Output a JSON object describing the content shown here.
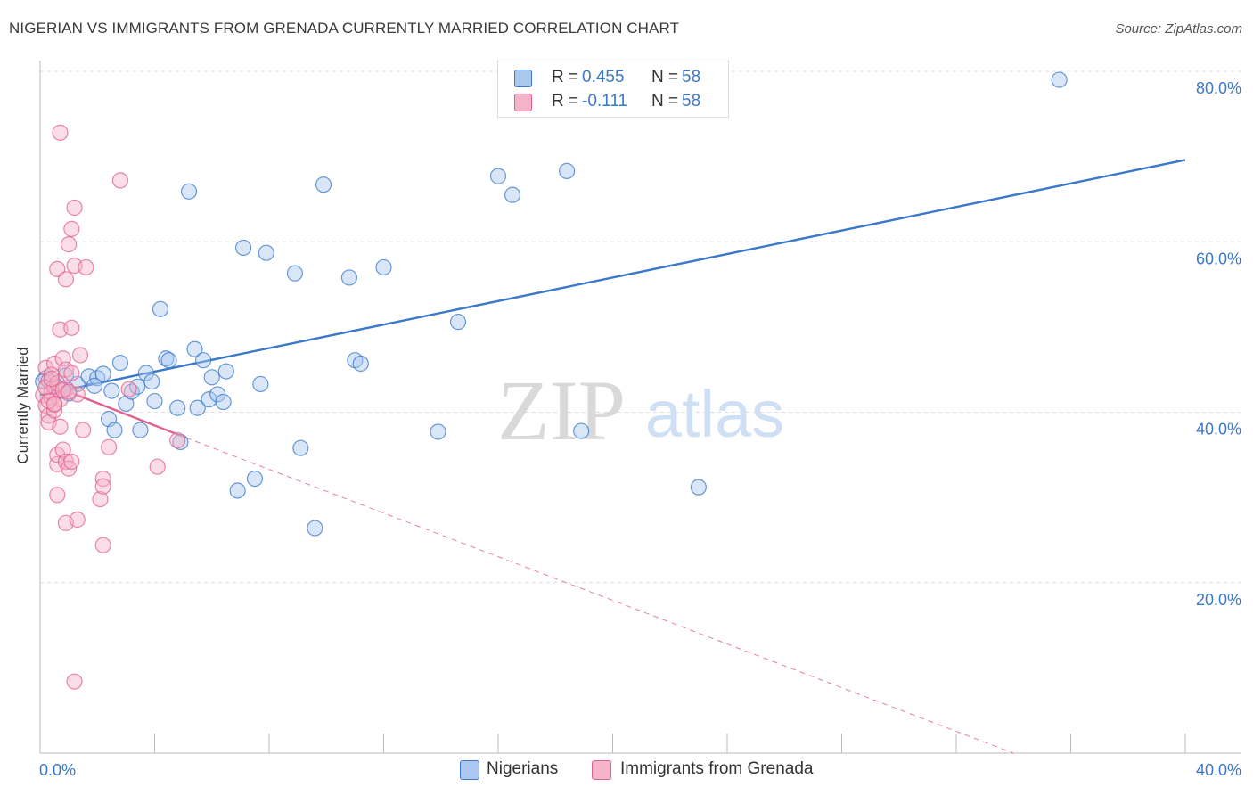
{
  "title": "NIGERIAN VS IMMIGRANTS FROM GRENADA CURRENTLY MARRIED CORRELATION CHART",
  "source": "Source: ZipAtlas.com",
  "watermark": {
    "zip": "ZIP",
    "atlas": "atlas"
  },
  "colors": {
    "blue": "#3b78c9",
    "blue_fill": "#a9c7ef",
    "pink": "#e0608f",
    "pink_fill": "#f4b3c8",
    "grid": "#dddddd"
  },
  "legend_top": {
    "rows": [
      {
        "r_label": "R =",
        "r_value": "0.455",
        "n_label": "N =",
        "n_value": "58"
      },
      {
        "r_label": "R =",
        "r_value": "-0.111",
        "n_label": "N =",
        "n_value": "58"
      }
    ]
  },
  "legend_bottom": {
    "series1": "Nigerians",
    "series2": "Immigrants from Grenada"
  },
  "chart_data": {
    "type": "scatter",
    "title": "NIGERIAN VS IMMIGRANTS FROM GRENADA CURRENTLY MARRIED CORRELATION CHART",
    "xlabel": "",
    "ylabel": "Currently Married",
    "xlim": [
      0,
      40
    ],
    "ylim": [
      0,
      82
    ],
    "x_ticks": [
      "0.0%",
      "40.0%"
    ],
    "y_ticks": [
      {
        "value": 20,
        "label": "20.0%"
      },
      {
        "value": 40,
        "label": "40.0%"
      },
      {
        "value": 60,
        "label": "60.0%"
      },
      {
        "value": 80,
        "label": "80.0%"
      }
    ],
    "series": [
      {
        "name": "Nigerians",
        "color": "blue",
        "trend": {
          "x": [
            0,
            40
          ],
          "y": [
            42.0,
            69.6
          ],
          "dashed_after": null
        },
        "points": [
          [
            0.2,
            44.0
          ],
          [
            0.4,
            43.5
          ],
          [
            0.6,
            43.0
          ],
          [
            0.8,
            42.5
          ],
          [
            0.9,
            44.3
          ],
          [
            1.3,
            43.3
          ],
          [
            1.7,
            44.2
          ],
          [
            2.0,
            44.0
          ],
          [
            1.9,
            43.1
          ],
          [
            2.2,
            44.5
          ],
          [
            2.4,
            39.2
          ],
          [
            2.5,
            42.5
          ],
          [
            2.6,
            37.9
          ],
          [
            2.8,
            45.8
          ],
          [
            3.0,
            41.0
          ],
          [
            3.2,
            42.4
          ],
          [
            3.4,
            43.0
          ],
          [
            3.5,
            37.9
          ],
          [
            3.7,
            44.6
          ],
          [
            3.9,
            43.6
          ],
          [
            4.0,
            41.3
          ],
          [
            4.2,
            52.1
          ],
          [
            4.4,
            46.3
          ],
          [
            4.5,
            46.1
          ],
          [
            4.8,
            40.5
          ],
          [
            4.9,
            36.5
          ],
          [
            5.2,
            65.9
          ],
          [
            5.4,
            47.4
          ],
          [
            5.5,
            40.5
          ],
          [
            5.7,
            46.1
          ],
          [
            5.9,
            41.5
          ],
          [
            6.0,
            44.1
          ],
          [
            6.2,
            42.1
          ],
          [
            6.4,
            41.2
          ],
          [
            6.5,
            44.8
          ],
          [
            6.9,
            30.8
          ],
          [
            7.1,
            59.3
          ],
          [
            7.5,
            32.2
          ],
          [
            7.7,
            43.3
          ],
          [
            7.9,
            58.7
          ],
          [
            8.9,
            56.3
          ],
          [
            9.1,
            35.8
          ],
          [
            9.6,
            26.4
          ],
          [
            9.9,
            66.7
          ],
          [
            10.8,
            55.8
          ],
          [
            11.0,
            46.1
          ],
          [
            11.2,
            45.7
          ],
          [
            12.0,
            57.0
          ],
          [
            13.9,
            37.7
          ],
          [
            14.6,
            50.6
          ],
          [
            16.0,
            67.7
          ],
          [
            16.5,
            65.5
          ],
          [
            18.4,
            68.3
          ],
          [
            18.9,
            37.8
          ],
          [
            23.0,
            31.2
          ],
          [
            35.6,
            79.0
          ],
          [
            0.1,
            43.6
          ],
          [
            1.0,
            42.2
          ]
        ]
      },
      {
        "name": "Immigrants from Grenada",
        "color": "pink",
        "trend": {
          "x": [
            0,
            5.1
          ],
          "y": [
            43.7,
            37.0
          ],
          "dashed_x": [
            5.1,
            34.0
          ],
          "dashed_y": [
            37.0,
            0.0
          ]
        },
        "points": [
          [
            0.1,
            42.0
          ],
          [
            0.2,
            40.8
          ],
          [
            0.2,
            45.2
          ],
          [
            0.3,
            39.6
          ],
          [
            0.3,
            38.8
          ],
          [
            0.3,
            43.7
          ],
          [
            0.4,
            41.7
          ],
          [
            0.4,
            42.3
          ],
          [
            0.5,
            43.0
          ],
          [
            0.5,
            40.2
          ],
          [
            0.5,
            45.7
          ],
          [
            0.6,
            56.8
          ],
          [
            0.6,
            33.9
          ],
          [
            0.6,
            35.0
          ],
          [
            0.6,
            30.3
          ],
          [
            0.7,
            49.7
          ],
          [
            0.7,
            41.5
          ],
          [
            0.7,
            72.8
          ],
          [
            0.8,
            46.3
          ],
          [
            0.8,
            35.6
          ],
          [
            0.9,
            34.2
          ],
          [
            0.9,
            42.8
          ],
          [
            0.9,
            45.0
          ],
          [
            0.9,
            55.6
          ],
          [
            0.9,
            27.0
          ],
          [
            1.0,
            59.7
          ],
          [
            1.0,
            33.4
          ],
          [
            1.1,
            34.2
          ],
          [
            1.1,
            44.6
          ],
          [
            1.1,
            49.9
          ],
          [
            1.1,
            61.5
          ],
          [
            1.2,
            57.2
          ],
          [
            1.2,
            8.4
          ],
          [
            1.2,
            64.0
          ],
          [
            1.3,
            27.4
          ],
          [
            1.3,
            42.1
          ],
          [
            1.4,
            46.7
          ],
          [
            1.5,
            37.9
          ],
          [
            1.6,
            57.0
          ],
          [
            2.1,
            29.8
          ],
          [
            2.2,
            24.4
          ],
          [
            2.2,
            32.2
          ],
          [
            2.2,
            31.3
          ],
          [
            2.4,
            35.9
          ],
          [
            2.8,
            67.2
          ],
          [
            3.1,
            42.7
          ],
          [
            4.1,
            33.6
          ],
          [
            4.8,
            36.7
          ],
          [
            0.2,
            42.9
          ],
          [
            0.4,
            44.4
          ],
          [
            0.5,
            41.0
          ],
          [
            0.6,
            43.4
          ],
          [
            0.3,
            41.3
          ],
          [
            0.4,
            43.9
          ],
          [
            0.8,
            42.6
          ],
          [
            1.0,
            42.4
          ],
          [
            0.7,
            38.3
          ],
          [
            0.5,
            40.9
          ]
        ]
      }
    ]
  }
}
